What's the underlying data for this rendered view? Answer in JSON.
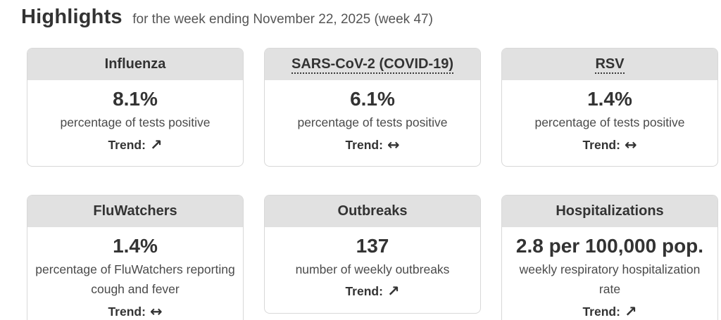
{
  "page": {
    "title": "Highlights",
    "subtitle": "for the week ending November 22, 2025 (week 47)"
  },
  "trend_label": "Trend:",
  "cards": [
    {
      "title": "Influenza",
      "title_has_dotted_underline": false,
      "value": "8.1%",
      "description": "percentage of tests positive",
      "trend": "increasing",
      "trend_arrow": "↗"
    },
    {
      "title": "SARS-CoV-2 (COVID-19)",
      "title_has_dotted_underline": true,
      "value": "6.1%",
      "description": "percentage of tests positive",
      "trend": "stable",
      "trend_arrow": "↔"
    },
    {
      "title": "RSV",
      "title_has_dotted_underline": true,
      "value": "1.4%",
      "description": "percentage of tests positive",
      "trend": "stable",
      "trend_arrow": "↔"
    },
    {
      "title": "FluWatchers",
      "title_has_dotted_underline": false,
      "value": "1.4%",
      "description": "percentage of FluWatchers reporting cough and fever",
      "trend": "stable",
      "trend_arrow": "↔"
    },
    {
      "title": "Outbreaks",
      "title_has_dotted_underline": false,
      "value": "137",
      "description": "number of weekly outbreaks",
      "trend": "increasing",
      "trend_arrow": "↗"
    },
    {
      "title": "Hospitalizations",
      "title_has_dotted_underline": false,
      "value": "2.8 per 100,000 pop.",
      "description": "weekly respiratory hospitalization rate",
      "trend": "increasing",
      "trend_arrow": "↗"
    }
  ],
  "colors": {
    "card_header_background": "#e1e1e1",
    "card_border": "#d8d8d8",
    "text_dark": "#333333",
    "text_muted": "#4a4a4a",
    "subtitle_text": "#555555"
  }
}
